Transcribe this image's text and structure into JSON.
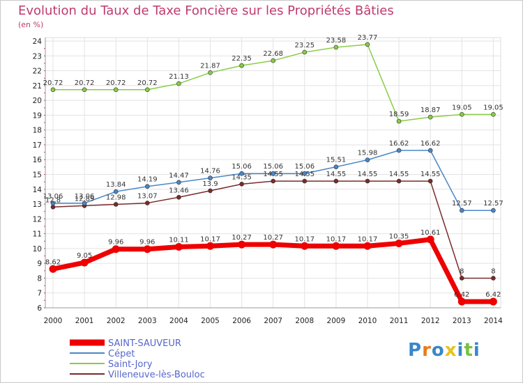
{
  "chart_data": {
    "type": "line",
    "title": "Evolution du Taux de Taxe Foncière sur les Propriétés Bâties",
    "unit_label": "(en %)",
    "x": [
      "2000",
      "2001",
      "2002",
      "2003",
      "2004",
      "2005",
      "2006",
      "2007",
      "2008",
      "2009",
      "2010",
      "2011",
      "2012",
      "2013",
      "2014"
    ],
    "ylim": [
      6,
      24
    ],
    "yticks": [
      6,
      7,
      8,
      9,
      10,
      11,
      12,
      13,
      14,
      15,
      16,
      17,
      18,
      19,
      20,
      21,
      22,
      23,
      24
    ],
    "grid": true,
    "legend_position": "bottom-left",
    "series": [
      {
        "name": "SAINT-SAUVEUR",
        "color": "#ee0000",
        "values": [
          8.62,
          9.05,
          9.96,
          9.96,
          10.11,
          10.17,
          10.27,
          10.27,
          10.17,
          10.17,
          10.17,
          10.35,
          10.61,
          6.42,
          6.42
        ],
        "labels": [
          "8.62",
          "9.05",
          "9.96",
          "9.96",
          "10.11",
          "10.17",
          "10.27",
          "10.27",
          "10.17",
          "10.17",
          "10.17",
          "10.35",
          "10.61",
          "6.42",
          "6.42"
        ]
      },
      {
        "name": "Cépet",
        "color": "#4a86c8",
        "values": [
          13.06,
          13.06,
          13.84,
          14.19,
          14.47,
          14.76,
          15.06,
          15.06,
          15.06,
          15.51,
          15.98,
          16.62,
          16.62,
          12.57,
          12.57
        ],
        "labels": [
          "13.06",
          "13.06",
          "13.84",
          "14.19",
          "14.47",
          "14.76",
          "15.06",
          "15.06",
          "15.06",
          "15.51",
          "15.98",
          "16.62",
          "16.62",
          "12.57",
          "12.57"
        ]
      },
      {
        "name": "Saint-Jory",
        "color": "#88cc44",
        "values": [
          20.72,
          20.72,
          20.72,
          20.72,
          21.13,
          21.87,
          22.35,
          22.68,
          23.25,
          23.58,
          23.77,
          18.59,
          18.87,
          19.05,
          19.05
        ],
        "labels": [
          "20.72",
          "20.72",
          "20.72",
          "20.72",
          "21.13",
          "21.87",
          "22.35",
          "22.68",
          "23.25",
          "23.58",
          "23.77",
          "18.59",
          "18.87",
          "19.05",
          "19.05"
        ]
      },
      {
        "name": "Villeneuve-lès-Bouloc",
        "color": "#7a2a2a",
        "values": [
          12.8,
          12.89,
          12.98,
          13.07,
          13.46,
          13.9,
          14.35,
          14.55,
          14.55,
          14.55,
          14.55,
          14.55,
          14.55,
          8,
          8
        ],
        "labels": [
          "12.8",
          "12.89",
          "12.98",
          "13.07",
          "13.46",
          "13.9",
          "14.35",
          "14.55",
          "14.55",
          "14.55",
          "14.55",
          "14.55",
          "14.55",
          "8",
          "8"
        ]
      }
    ]
  },
  "logo": {
    "letters": [
      "P",
      "r",
      "o",
      "x",
      "i",
      "t",
      "i"
    ],
    "colors": [
      "#3a86c8",
      "#e87a1e",
      "#3a86c8",
      "#e8c21e",
      "#3a86c8",
      "#7ac142",
      "#3a86c8"
    ]
  }
}
